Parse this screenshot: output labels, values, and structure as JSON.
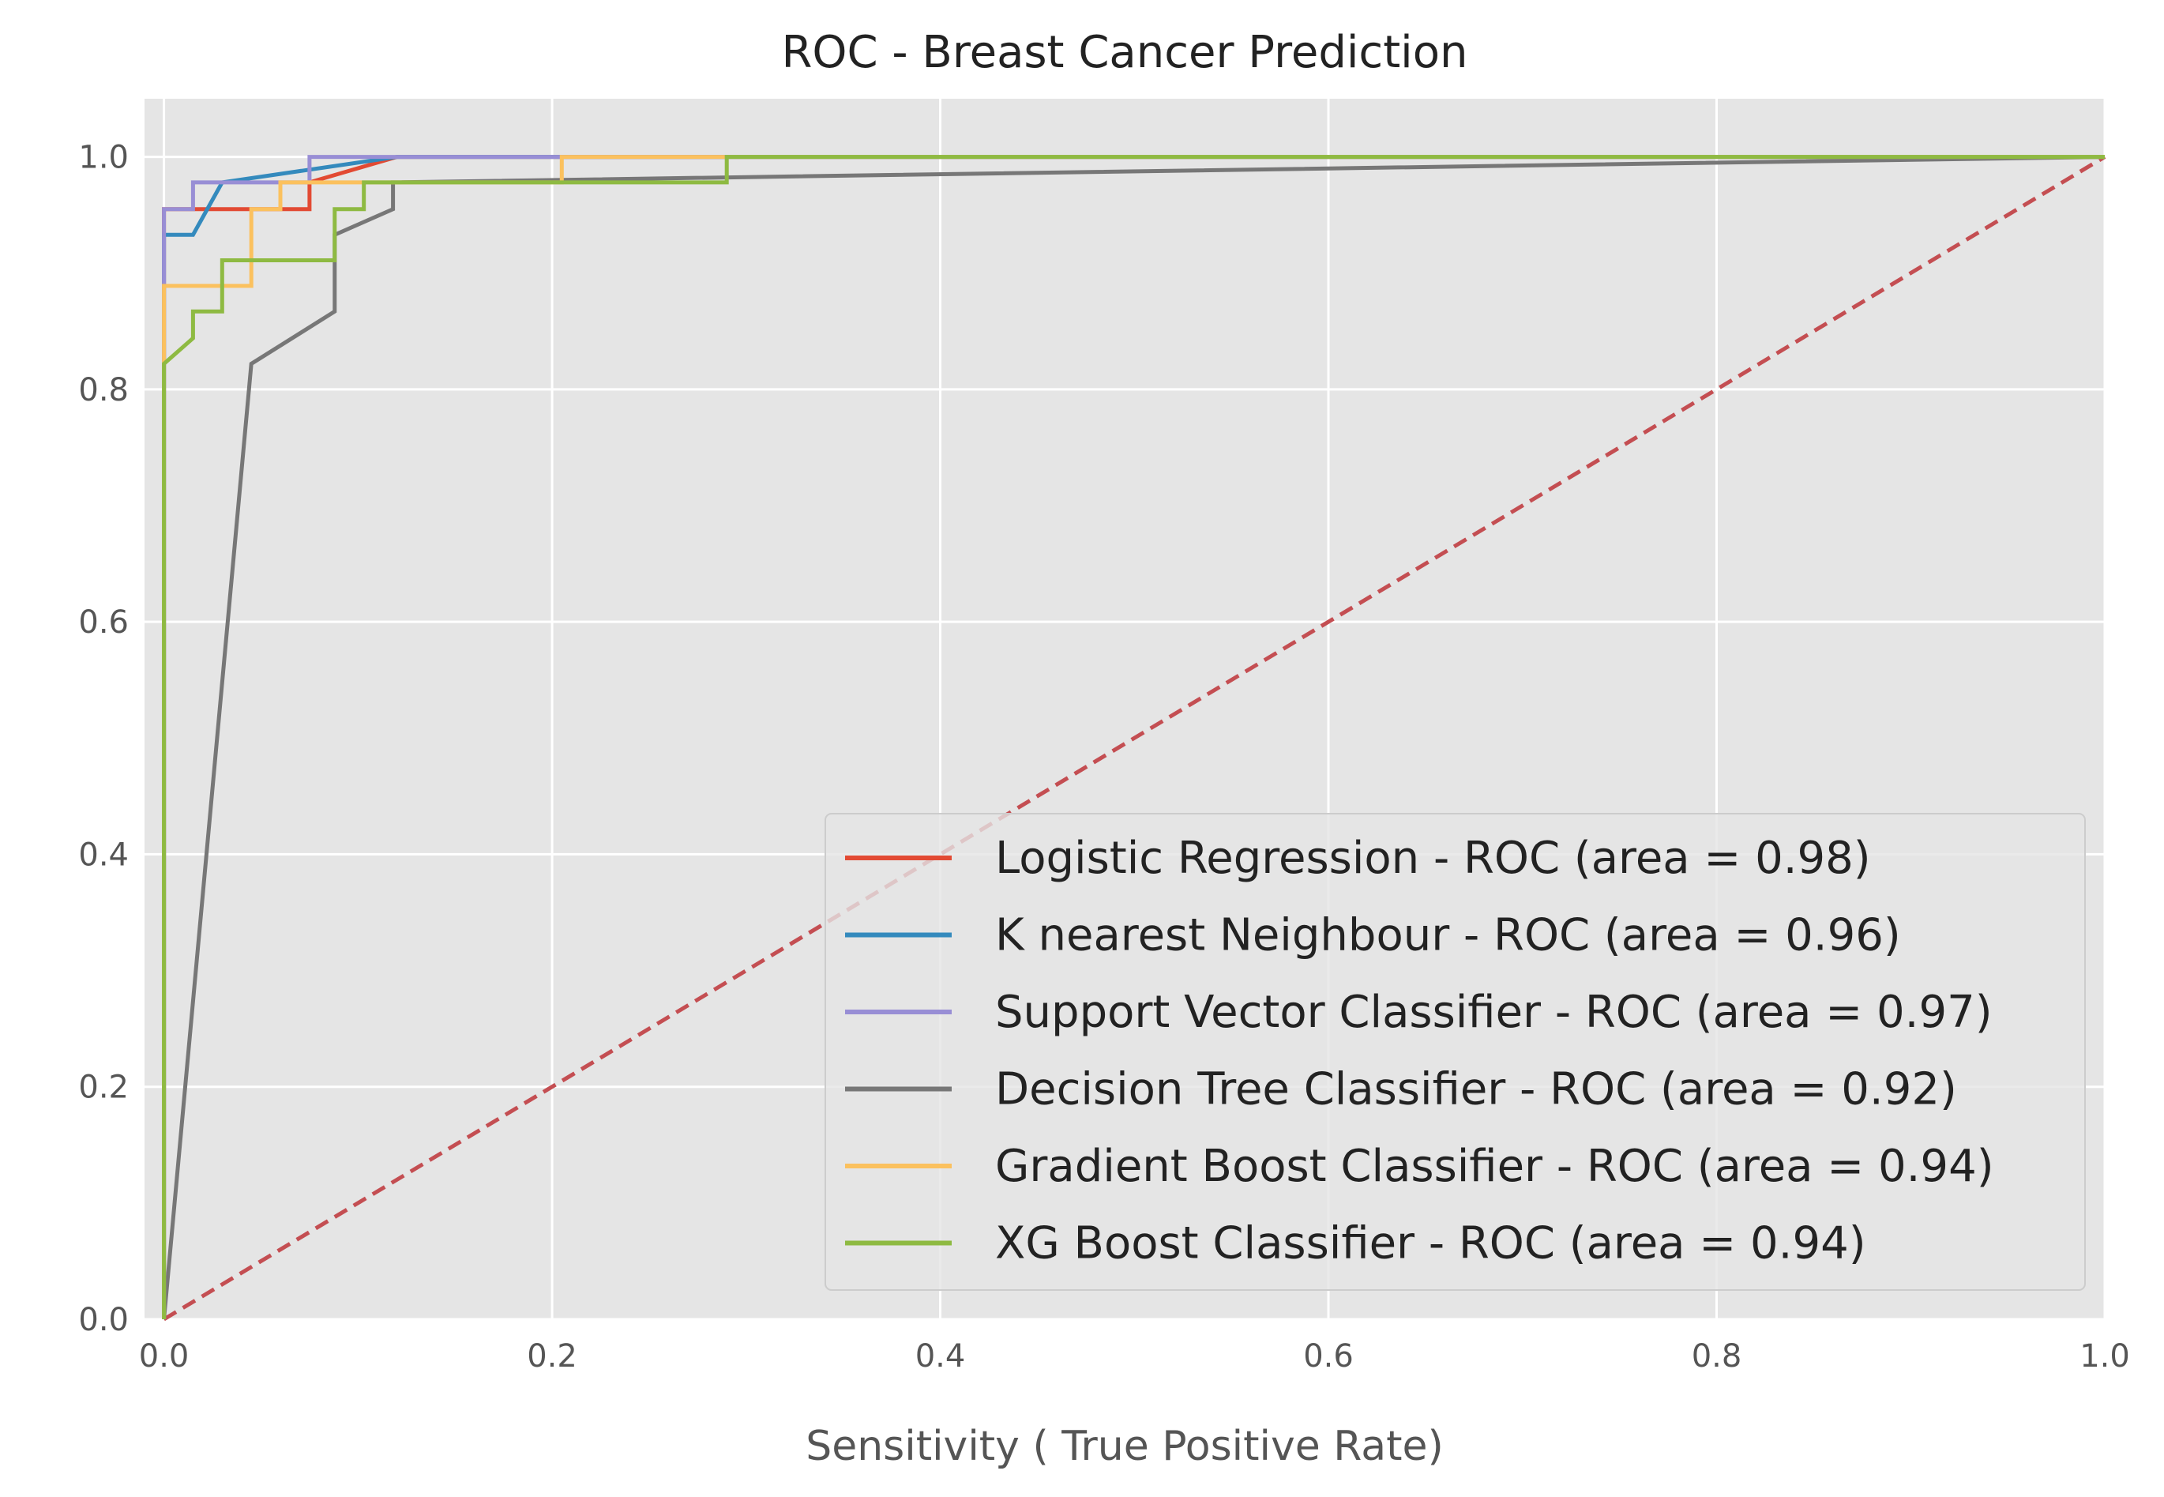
{
  "chart_data": {
    "type": "line",
    "title": "ROC - Breast Cancer Prediction",
    "xlabel": "Sensitivity ( True Positive Rate)",
    "ylabel": "",
    "xlim": [
      -0.01,
      1.0
    ],
    "ylim": [
      0.0,
      1.05
    ],
    "x_ticks": [
      "0.0",
      "0.2",
      "0.4",
      "0.6",
      "0.8",
      "1.0"
    ],
    "y_ticks": [
      "0.0",
      "0.2",
      "0.4",
      "0.6",
      "0.8",
      "1.0"
    ],
    "grid": true,
    "legend_position": "lower-right",
    "series": [
      {
        "name": "Logistic Regression - ROC (area = 0.98)",
        "color": "#e24a33",
        "x": [
          0,
          0,
          0.015,
          0.015,
          0.03,
          0.03,
          0.06,
          0.06,
          0.075,
          0.075,
          0.12,
          1.0
        ],
        "y": [
          0,
          0.955,
          0.955,
          0.955,
          0.955,
          0.955,
          0.955,
          0.955,
          0.955,
          0.978,
          1.0,
          1.0
        ]
      },
      {
        "name": "K nearest Neighbour - ROC (area = 0.96)",
        "color": "#348abd",
        "x": [
          0,
          0,
          0.015,
          0.03,
          0.12,
          1.0
        ],
        "y": [
          0,
          0.933,
          0.933,
          0.978,
          1.0,
          1.0
        ]
      },
      {
        "name": "Support Vector Classifier - ROC (area = 0.97)",
        "color": "#988ed5",
        "x": [
          0,
          0,
          0.015,
          0.015,
          0.075,
          0.075,
          1.0
        ],
        "y": [
          0,
          0.955,
          0.955,
          0.978,
          0.978,
          1.0,
          1.0
        ]
      },
      {
        "name": "Decision Tree Classifier - ROC (area = 0.92)",
        "color": "#777777",
        "x": [
          0,
          0.045,
          0.088,
          0.088,
          0.118,
          0.118,
          1.0
        ],
        "y": [
          0,
          0.822,
          0.867,
          0.933,
          0.955,
          0.978,
          1.0
        ]
      },
      {
        "name": "Gradient Boost Classifier - ROC (area = 0.94)",
        "color": "#fbc15e",
        "x": [
          0,
          0,
          0.045,
          0.045,
          0.06,
          0.06,
          0.205,
          0.205,
          1.0
        ],
        "y": [
          0,
          0.889,
          0.889,
          0.955,
          0.955,
          0.978,
          0.978,
          1.0,
          1.0
        ]
      },
      {
        "name": "XG Boost Classifier - ROC (area = 0.94)",
        "color": "#8eba42",
        "x": [
          0,
          0,
          0.015,
          0.015,
          0.03,
          0.03,
          0.088,
          0.088,
          0.103,
          0.103,
          0.29,
          0.29,
          1.0
        ],
        "y": [
          0,
          0.822,
          0.844,
          0.867,
          0.867,
          0.911,
          0.911,
          0.955,
          0.955,
          0.978,
          0.978,
          1.0,
          1.0
        ]
      }
    ],
    "reference_line": {
      "style": "dashed",
      "color": "#c44e52",
      "x": [
        0,
        1
      ],
      "y": [
        0,
        1
      ]
    }
  }
}
